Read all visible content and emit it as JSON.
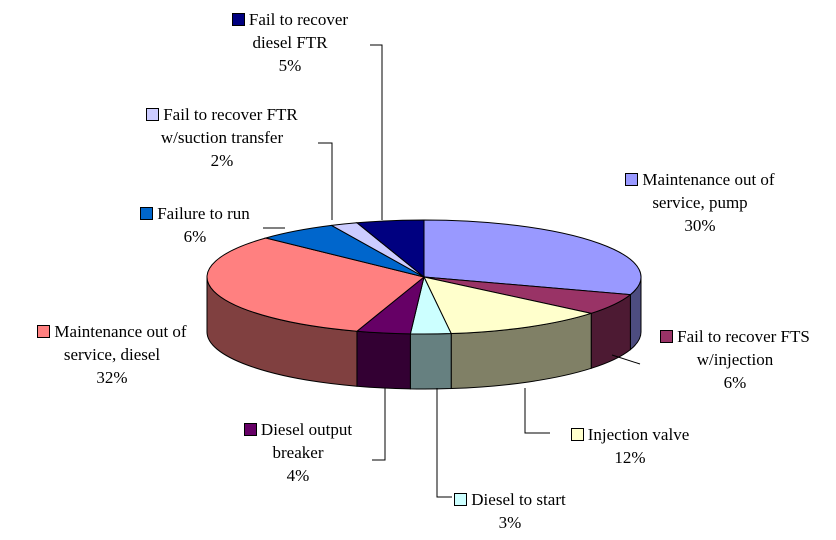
{
  "chart_data": {
    "type": "pie",
    "categories": [
      "Maintenance out of service, pump",
      "Fail to recover FTS w/injection",
      "Injection valve",
      "Diesel to start",
      "Diesel output breaker",
      "Maintenance out of service, diesel",
      "Failure to run",
      "Fail to recover FTR w/suction transfer",
      "Fail to recover diesel FTR"
    ],
    "values": [
      30,
      6,
      12,
      3,
      4,
      32,
      6,
      2,
      5
    ],
    "value_labels": [
      "30%",
      "6%",
      "12%",
      "3%",
      "4%",
      "32%",
      "6%",
      "2%",
      "5%"
    ],
    "colors": [
      "#9999ff",
      "#993366",
      "#ffffcc",
      "#ccffff",
      "#660066",
      "#ff8080",
      "#0066cc",
      "#ccccff",
      "#000080"
    ]
  }
}
